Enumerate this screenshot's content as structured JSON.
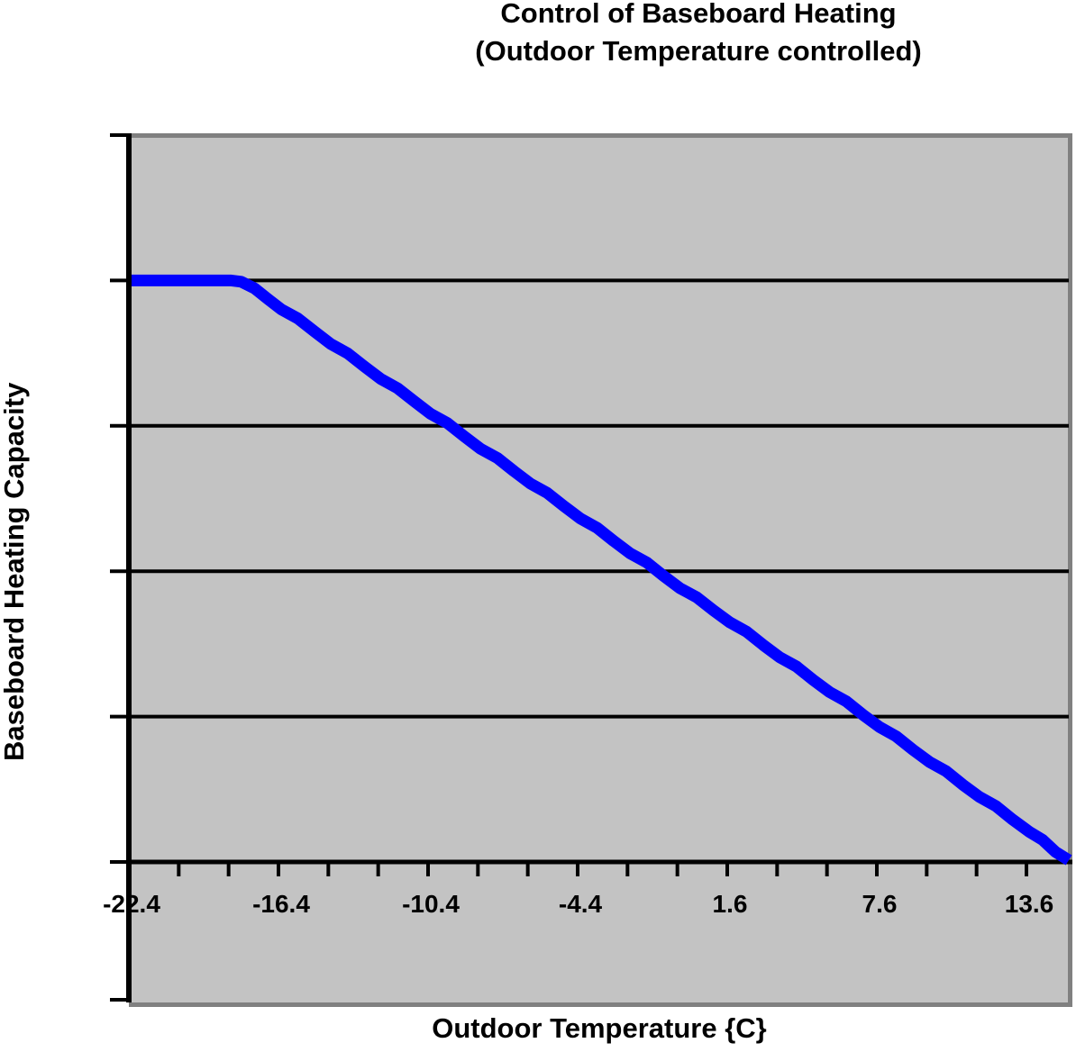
{
  "title": {
    "line1": "Control of Baseboard Heating",
    "line2": "(Outdoor Temperature controlled)"
  },
  "colors": {
    "series_line": "#0000ff",
    "plot_fill": "#c3c3c3",
    "plot_border": "#808080",
    "axis_and_grid": "#000000",
    "text": "#000000",
    "page_background": "#ffffff"
  },
  "chart_data": {
    "type": "line",
    "title": "Control of Baseboard Heating",
    "subtitle": "(Outdoor Temperature controlled)",
    "xlabel": "Outdoor Temperature {C}",
    "ylabel": "Baseboard Heating Capacity",
    "x_tick_labels": [
      "-22.4",
      "-16.4",
      "-10.4",
      "-4.4",
      "1.6",
      "7.6",
      "13.6"
    ],
    "x_major_tick_step_c": 6,
    "x_minor_tick_step_c": 2,
    "xlim": [
      -22.4,
      15.6
    ],
    "ylim": [
      -0.2,
      1.0
    ],
    "y_gridline_values": [
      0.2,
      0.4,
      0.6,
      0.8
    ],
    "y_tick_labels_visible": false,
    "grid": "horizontal-only",
    "legend_position": "none",
    "series": [
      {
        "name": "Baseboard Heating Capacity",
        "color": "#0000ff",
        "x": [
          -22.4,
          -20.4,
          -18.4,
          -18.0,
          -16.4,
          -14.4,
          -12.4,
          -10.4,
          -8.4,
          -6.4,
          -4.4,
          -2.4,
          -0.4,
          1.6,
          3.6,
          5.6,
          7.6,
          9.6,
          11.6,
          13.6,
          15.4
        ],
        "y": [
          0.8,
          0.8,
          0.8,
          0.8,
          0.762,
          0.714,
          0.666,
          0.618,
          0.57,
          0.522,
          0.474,
          0.426,
          0.378,
          0.331,
          0.283,
          0.235,
          0.187,
          0.139,
          0.091,
          0.043,
          0.0
        ]
      }
    ]
  }
}
